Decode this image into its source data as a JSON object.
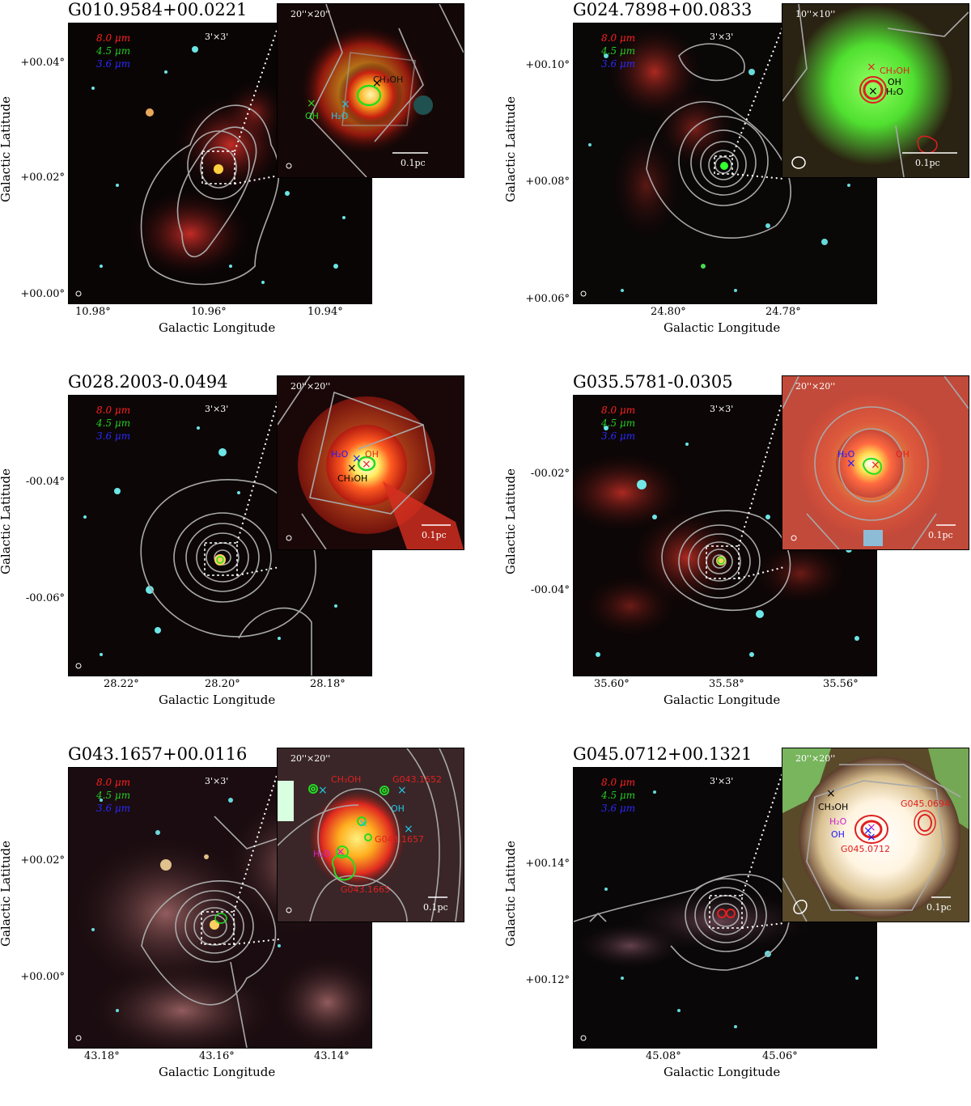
{
  "panels": [
    {
      "title": "G010.9584+00.0221",
      "ylabel": "Galactic Latitude",
      "xlabel": "Galactic Longitude",
      "yticks": [
        "+00.04°",
        "+00.02°",
        "+00.00°"
      ],
      "xticks": [
        "10.98°",
        "10.96°",
        "10.94°"
      ],
      "bands": [
        "8.0 μm",
        "4.5 μm",
        "3.6 μm"
      ],
      "fov_main": "3'×3'",
      "fov_inset": "20''×20''",
      "scale": "0.1pc",
      "labels": [
        "CH₃OH",
        "OH",
        "H₂O"
      ]
    },
    {
      "title": "G024.7898+00.0833",
      "ylabel": "Galactic Latitude",
      "xlabel": "Galactic Longitude",
      "yticks": [
        "+00.10°",
        "+00.08°",
        "+00.06°"
      ],
      "xticks": [
        "24.80°",
        "24.78°"
      ],
      "bands": [
        "8.0 μm",
        "4.5 μm",
        "3.6 μm"
      ],
      "fov_main": "3'×3'",
      "fov_inset": "10''×10''",
      "scale": "0.1pc",
      "labels": [
        "CH₃OH",
        "OH",
        "H₂O"
      ]
    },
    {
      "title": "G028.2003-0.0494",
      "ylabel": "Galactic Latitude",
      "xlabel": "Galactic Longitude",
      "yticks": [
        "-00.04°",
        "-00.06°"
      ],
      "xticks": [
        "28.22°",
        "28.20°",
        "28.18°"
      ],
      "bands": [
        "8.0 μm",
        "4.5 μm",
        "3.6 μm"
      ],
      "fov_main": "3'×3'",
      "fov_inset": "20''×20''",
      "scale": "0.1pc",
      "labels": [
        "H₂O",
        "OH",
        "CH₃OH"
      ]
    },
    {
      "title": "G035.5781-0.0305",
      "ylabel": "Galactic Latitude",
      "xlabel": "Galactic Longitude",
      "yticks": [
        "-00.02°",
        "-00.04°"
      ],
      "xticks": [
        "35.60°",
        "35.58°",
        "35.56°"
      ],
      "bands": [
        "8.0 μm",
        "4.5 μm",
        "3.6 μm"
      ],
      "fov_main": "3'×3'",
      "fov_inset": "20''×20''",
      "scale": "0.1pc",
      "labels": [
        "H₂O",
        "OH"
      ]
    },
    {
      "title": "G043.1657+00.0116",
      "ylabel": "Galactic Latitude",
      "xlabel": "Galactic Longitude",
      "yticks": [
        "+00.02°",
        "+00.00°"
      ],
      "xticks": [
        "43.18°",
        "43.16°",
        "43.14°"
      ],
      "bands": [
        "8.0 μm",
        "4.5 μm",
        "3.6 μm"
      ],
      "fov_main": "3'×3'",
      "fov_inset": "20''×20''",
      "scale": "0.1pc",
      "labels": [
        "CH₃OH",
        "G043.1652",
        "OH",
        "G043.1657",
        "H₂O",
        "G043.1665"
      ]
    },
    {
      "title": "G045.0712+00.1321",
      "ylabel": "Galactic Latitude",
      "xlabel": "Galactic Longitude",
      "yticks": [
        "+00.14°",
        "+00.12°"
      ],
      "xticks": [
        "45.08°",
        "45.06°"
      ],
      "bands": [
        "8.0 μm",
        "4.5 μm",
        "3.6 μm"
      ],
      "fov_main": "3'×3'",
      "fov_inset": "20''×20''",
      "scale": "0.1pc",
      "labels": [
        "CH₃OH",
        "G045.0694",
        "H₂O",
        "OH",
        "G045.0712"
      ]
    }
  ],
  "colors": {
    "band_8": "#ff2020",
    "band_45": "#22cc22",
    "band_36": "#2a2aff",
    "contour": "#a8a8a8"
  }
}
